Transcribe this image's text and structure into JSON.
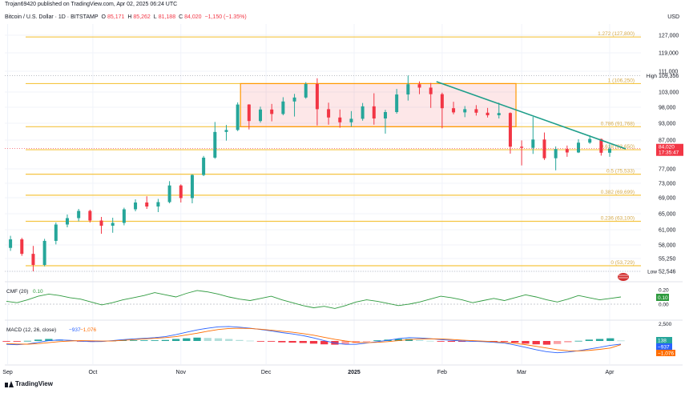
{
  "header": {
    "published": "Trojan69420 published on TradingView.com, Apr 02, 2025 06:24 UTC",
    "symbol": "Bitcoin / U.S. Dollar · 1D · BITSTAMP",
    "o_label": "O",
    "o_value": "85,171",
    "h_label": "H",
    "h_value": "85,262",
    "l_label": "L",
    "l_value": "81,188",
    "c_label": "C",
    "c_value": "84,020",
    "change": "−1,150 (−1.35%)",
    "currency": "USD"
  },
  "brand": {
    "name": "TradingView",
    "logo_icon": "tradingview-logo-icon"
  },
  "colors": {
    "up": "#26a69a",
    "down": "#f23645",
    "fib": "#f5c542",
    "fib_box": "#ff9800",
    "trend": "#1e9e8a",
    "cmf": "#2e9a3e",
    "macd": "#2962ff",
    "signal": "#ff6d00"
  },
  "chart_data": {
    "type": "candlestick",
    "x_axis_labels": [
      "Sep",
      "Oct",
      "Nov",
      "Dec",
      "2025",
      "Feb",
      "Mar",
      "Apr"
    ],
    "x_axis_dates": [
      "2024-09-01",
      "2024-10-01",
      "2024-11-01",
      "2024-12-01",
      "2025-01-01",
      "2025-02-01",
      "2025-03-01",
      "2025-04-01"
    ],
    "price_ticks": [
      127000,
      119000,
      111000,
      103000,
      98000,
      93000,
      87000,
      77000,
      73000,
      69000,
      65000,
      61000,
      58000,
      55250,
      52546
    ],
    "price_tick_labels": [
      "127,000",
      "119,000",
      "111,000",
      "103,000",
      "98,000",
      "93,000",
      "87,000",
      "77,000",
      "73,000",
      "69,000",
      "65,000",
      "61,000",
      "58,000",
      "55,250",
      "52,546"
    ],
    "high_label": "High",
    "high_value": "109,356",
    "high": 109356,
    "low_label": "Low",
    "low_value": "52,546",
    "low": 52546,
    "last_price_label": "84,020",
    "last_price": 84020,
    "countdown": "17:35:47",
    "fib_levels": [
      {
        "label": "1.272 (127,800)",
        "price": 127800
      },
      {
        "label": "1 (106,250)",
        "price": 106250
      },
      {
        "label": "0.786 (91,768)",
        "price": 91768
      },
      {
        "label": "0.618 (83,650)",
        "price": 83650
      },
      {
        "label": "0.5 (75,533)",
        "price": 75533
      },
      {
        "label": "0.382 (69,699)",
        "price": 69699
      },
      {
        "label": "0.236 (63,100)",
        "price": 63100
      },
      {
        "label": "0 (53,729)",
        "price": 53729
      }
    ],
    "range_box": {
      "date_start": "2024-11-22",
      "date_end": "2025-02-27",
      "price_top": 106250,
      "price_bottom": 91768
    },
    "trendline": {
      "date_start": "2025-01-30",
      "price_start": 107000,
      "date_end": "2025-04-01",
      "price_end": 84500
    },
    "candles": [
      {
        "date": "2024-09-02",
        "o": 57400,
        "h": 59800,
        "l": 56800,
        "c": 59100
      },
      {
        "date": "2024-09-06",
        "o": 59100,
        "h": 59400,
        "l": 55800,
        "c": 56200
      },
      {
        "date": "2024-09-10",
        "o": 56200,
        "h": 57800,
        "l": 52546,
        "c": 53900
      },
      {
        "date": "2024-09-14",
        "o": 53900,
        "h": 59200,
        "l": 53600,
        "c": 58800
      },
      {
        "date": "2024-09-18",
        "o": 58800,
        "h": 62800,
        "l": 58100,
        "c": 62300
      },
      {
        "date": "2024-09-22",
        "o": 62300,
        "h": 64800,
        "l": 61600,
        "c": 63900
      },
      {
        "date": "2024-09-26",
        "o": 63900,
        "h": 66200,
        "l": 63100,
        "c": 65700
      },
      {
        "date": "2024-09-30",
        "o": 65700,
        "h": 66000,
        "l": 62800,
        "c": 63300
      },
      {
        "date": "2024-10-04",
        "o": 63300,
        "h": 64200,
        "l": 60200,
        "c": 62000
      },
      {
        "date": "2024-10-08",
        "o": 62000,
        "h": 64000,
        "l": 60400,
        "c": 62700
      },
      {
        "date": "2024-10-12",
        "o": 62700,
        "h": 66500,
        "l": 62100,
        "c": 66100
      },
      {
        "date": "2024-10-16",
        "o": 66100,
        "h": 68600,
        "l": 65600,
        "c": 67800
      },
      {
        "date": "2024-10-20",
        "o": 67800,
        "h": 69400,
        "l": 66200,
        "c": 66800
      },
      {
        "date": "2024-10-24",
        "o": 66800,
        "h": 68700,
        "l": 65400,
        "c": 67900
      },
      {
        "date": "2024-10-28",
        "o": 67900,
        "h": 73600,
        "l": 67600,
        "c": 72400
      },
      {
        "date": "2024-11-01",
        "o": 72400,
        "h": 72700,
        "l": 67800,
        "c": 68900
      },
      {
        "date": "2024-11-05",
        "o": 68900,
        "h": 75500,
        "l": 67600,
        "c": 75300
      },
      {
        "date": "2024-11-09",
        "o": 75300,
        "h": 81500,
        "l": 75000,
        "c": 80900
      },
      {
        "date": "2024-11-13",
        "o": 80900,
        "h": 93400,
        "l": 80500,
        "c": 89900
      },
      {
        "date": "2024-11-17",
        "o": 89900,
        "h": 92400,
        "l": 86800,
        "c": 90600
      },
      {
        "date": "2024-11-21",
        "o": 90600,
        "h": 99600,
        "l": 90200,
        "c": 98900
      },
      {
        "date": "2024-11-25",
        "o": 98900,
        "h": 99000,
        "l": 90800,
        "c": 93700
      },
      {
        "date": "2024-11-29",
        "o": 93700,
        "h": 98200,
        "l": 93200,
        "c": 97300
      },
      {
        "date": "2024-12-03",
        "o": 97300,
        "h": 99100,
        "l": 93600,
        "c": 95900
      },
      {
        "date": "2024-12-07",
        "o": 95900,
        "h": 101300,
        "l": 95500,
        "c": 99900
      },
      {
        "date": "2024-12-11",
        "o": 99900,
        "h": 102400,
        "l": 95100,
        "c": 101200
      },
      {
        "date": "2024-12-15",
        "o": 101200,
        "h": 106800,
        "l": 100800,
        "c": 106100
      },
      {
        "date": "2024-12-19",
        "o": 106100,
        "h": 108300,
        "l": 92200,
        "c": 97400
      },
      {
        "date": "2024-12-23",
        "o": 97400,
        "h": 99500,
        "l": 92500,
        "c": 94800
      },
      {
        "date": "2024-12-27",
        "o": 94800,
        "h": 97300,
        "l": 91400,
        "c": 93300
      },
      {
        "date": "2024-12-31",
        "o": 93300,
        "h": 96800,
        "l": 91800,
        "c": 94400
      },
      {
        "date": "2025-01-04",
        "o": 94400,
        "h": 99400,
        "l": 93800,
        "c": 98300
      },
      {
        "date": "2025-01-08",
        "o": 98300,
        "h": 102600,
        "l": 92500,
        "c": 94500
      },
      {
        "date": "2025-01-12",
        "o": 94500,
        "h": 97200,
        "l": 89300,
        "c": 96500
      },
      {
        "date": "2025-01-16",
        "o": 96500,
        "h": 104200,
        "l": 96000,
        "c": 102200
      },
      {
        "date": "2025-01-20",
        "o": 102200,
        "h": 109356,
        "l": 100200,
        "c": 106000
      },
      {
        "date": "2025-01-24",
        "o": 106000,
        "h": 107100,
        "l": 102300,
        "c": 104700
      },
      {
        "date": "2025-01-28",
        "o": 104700,
        "h": 106500,
        "l": 97800,
        "c": 102300
      },
      {
        "date": "2025-02-01",
        "o": 102300,
        "h": 102800,
        "l": 91200,
        "c": 97700
      },
      {
        "date": "2025-02-05",
        "o": 97700,
        "h": 99800,
        "l": 95800,
        "c": 96400
      },
      {
        "date": "2025-02-09",
        "o": 96400,
        "h": 98400,
        "l": 94900,
        "c": 97400
      },
      {
        "date": "2025-02-13",
        "o": 97400,
        "h": 98700,
        "l": 95400,
        "c": 96300
      },
      {
        "date": "2025-02-17",
        "o": 96300,
        "h": 97800,
        "l": 94800,
        "c": 95500
      },
      {
        "date": "2025-02-21",
        "o": 95500,
        "h": 99500,
        "l": 94500,
        "c": 96200
      },
      {
        "date": "2025-02-25",
        "o": 96200,
        "h": 96400,
        "l": 82300,
        "c": 84700
      },
      {
        "date": "2025-03-01",
        "o": 84700,
        "h": 86900,
        "l": 78200,
        "c": 84300
      },
      {
        "date": "2025-03-05",
        "o": 84300,
        "h": 95000,
        "l": 82200,
        "c": 87200
      },
      {
        "date": "2025-03-09",
        "o": 87200,
        "h": 89700,
        "l": 80100,
        "c": 80700
      },
      {
        "date": "2025-03-13",
        "o": 80700,
        "h": 84800,
        "l": 76600,
        "c": 83900
      },
      {
        "date": "2025-03-17",
        "o": 83900,
        "h": 85100,
        "l": 81200,
        "c": 82700
      },
      {
        "date": "2025-03-21",
        "o": 82700,
        "h": 87300,
        "l": 82500,
        "c": 86100
      },
      {
        "date": "2025-03-25",
        "o": 86100,
        "h": 88700,
        "l": 85700,
        "c": 87400
      },
      {
        "date": "2025-03-29",
        "o": 87400,
        "h": 87500,
        "l": 81600,
        "c": 82600
      },
      {
        "date": "2025-04-01",
        "o": 82600,
        "h": 85500,
        "l": 81200,
        "c": 84020
      }
    ],
    "cmf": {
      "label": "CMF (20)",
      "value_label": "0.10",
      "ticks": [
        0.2,
        0.1,
        0.0
      ],
      "tick_labels": [
        "0.20",
        "0.10",
        "0.00"
      ],
      "last_value": "0.10",
      "values": [
        0.04,
        0.02,
        0.06,
        0.11,
        0.14,
        0.12,
        0.09,
        0.07,
        0.03,
        -0.01,
        0.02,
        0.06,
        0.09,
        0.12,
        0.16,
        0.13,
        0.1,
        0.15,
        0.19,
        0.17,
        0.14,
        0.1,
        0.07,
        0.05,
        0.08,
        0.11,
        0.06,
        0.02,
        -0.02,
        -0.05,
        -0.03,
        -0.06,
        -0.02,
        0.03,
        0.06,
        0.04,
        0.01,
        -0.02,
        0.0,
        0.03,
        0.07,
        0.11,
        0.09,
        0.06,
        0.02,
        0.05,
        0.08,
        0.05,
        0.09,
        0.13,
        0.1,
        0.06,
        0.03,
        0.07,
        0.12,
        0.09,
        0.06,
        0.08,
        0.1
      ]
    },
    "macd": {
      "label": "MACD (12, 26, close)",
      "value_1": "−937",
      "value_2": "−1,076",
      "ticks": [
        2500,
        138,
        -937,
        -1076
      ],
      "tick_labels": [
        "2,500",
        "138",
        "−937",
        "−1,076"
      ],
      "macd_values": [
        -1000,
        -1100,
        -900,
        -400,
        100,
        300,
        200,
        -50,
        -200,
        -150,
        100,
        400,
        600,
        800,
        1000,
        1300,
        1900,
        2600,
        3300,
        3800,
        4200,
        4300,
        4100,
        3800,
        3400,
        3000,
        2500,
        2100,
        1600,
        900,
        100,
        -600,
        -1000,
        -1000,
        -600,
        -200,
        200,
        700,
        1000,
        900,
        700,
        400,
        200,
        0,
        -100,
        -200,
        -400,
        -600,
        -1200,
        -1900,
        -2600,
        -3200,
        -3500,
        -3300,
        -2900,
        -2400,
        -1900,
        -1300,
        -937
      ],
      "signal_values": [
        -800,
        -900,
        -950,
        -800,
        -500,
        -200,
        0,
        100,
        50,
        -20,
        0,
        200,
        400,
        600,
        800,
        1000,
        1300,
        1800,
        2300,
        2900,
        3400,
        3700,
        3800,
        3700,
        3500,
        3200,
        2900,
        2600,
        2200,
        1700,
        1100,
        500,
        0,
        -400,
        -500,
        -400,
        -200,
        100,
        400,
        600,
        650,
        600,
        450,
        250,
        100,
        -50,
        -200,
        -400,
        -700,
        -1100,
        -1600,
        -2100,
        -2600,
        -2900,
        -2950,
        -2800,
        -2500,
        -2100,
        -1076
      ],
      "hist_values": [
        -200,
        -200,
        50,
        400,
        600,
        500,
        200,
        -150,
        -250,
        -130,
        100,
        200,
        200,
        200,
        200,
        300,
        600,
        800,
        1000,
        900,
        800,
        600,
        300,
        100,
        -100,
        -200,
        -400,
        -500,
        -600,
        -800,
        -1000,
        -1100,
        -1000,
        -600,
        -100,
        200,
        400,
        600,
        600,
        300,
        50,
        -200,
        -250,
        -250,
        -200,
        -150,
        -200,
        -200,
        -500,
        -800,
        -1000,
        -1100,
        -900,
        -400,
        50,
        400,
        600,
        800,
        138
      ]
    }
  }
}
